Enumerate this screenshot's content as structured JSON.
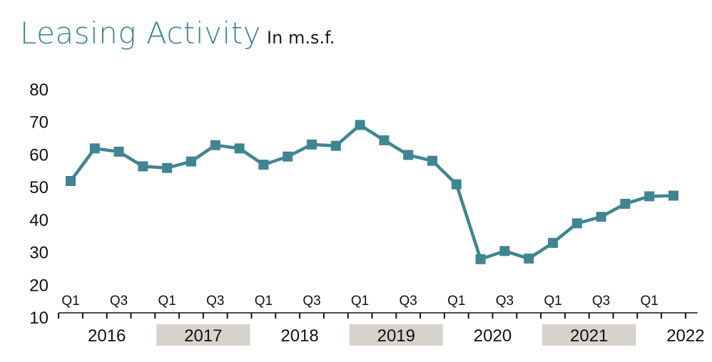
{
  "header": {
    "title": "Leasing Activity",
    "subtitle": "In m.s.f."
  },
  "colors": {
    "line": "#3f8592",
    "year_band": "#d6d3cc",
    "axis": "#111111"
  },
  "chart_data": {
    "type": "line",
    "title": "Leasing Activity",
    "subtitle": "In m.s.f.",
    "xlabel": "",
    "ylabel": "",
    "ylim": [
      10,
      80
    ],
    "yticks": [
      10,
      20,
      30,
      40,
      50,
      60,
      70,
      80
    ],
    "grid": false,
    "marker": "square",
    "quarter_tick_labels": [
      "Q1",
      "",
      "Q3",
      "",
      "Q1",
      "",
      "Q3",
      "",
      "Q1",
      "",
      "Q3",
      "",
      "Q1",
      "",
      "Q3",
      "",
      "Q1",
      "",
      "Q3",
      "",
      "Q1",
      "",
      "Q3",
      "",
      "Q1",
      ""
    ],
    "years": [
      {
        "label": "2016",
        "shaded": false
      },
      {
        "label": "2017",
        "shaded": true
      },
      {
        "label": "2018",
        "shaded": false
      },
      {
        "label": "2019",
        "shaded": true
      },
      {
        "label": "2020",
        "shaded": false
      },
      {
        "label": "2021",
        "shaded": true
      },
      {
        "label": "2022",
        "shaded": false
      }
    ],
    "x": [
      "2016 Q1",
      "2016 Q2",
      "2016 Q3",
      "2016 Q4",
      "2017 Q1",
      "2017 Q2",
      "2017 Q3",
      "2017 Q4",
      "2018 Q1",
      "2018 Q2",
      "2018 Q3",
      "2018 Q4",
      "2019 Q1",
      "2019 Q2",
      "2019 Q3",
      "2019 Q4",
      "2020 Q1",
      "2020 Q2",
      "2020 Q3",
      "2020 Q4",
      "2021 Q1",
      "2021 Q2",
      "2021 Q3",
      "2021 Q4",
      "2022 Q1",
      "2022 Q2"
    ],
    "series": [
      {
        "values": [
          52,
          62,
          61,
          56.5,
          56,
          58,
          63,
          62,
          57,
          59.5,
          63.2,
          62.8,
          69.2,
          64.5,
          60,
          58.2,
          51,
          28,
          30.5,
          28.2,
          33,
          39,
          41,
          45,
          47.3,
          47.5
        ]
      }
    ]
  }
}
